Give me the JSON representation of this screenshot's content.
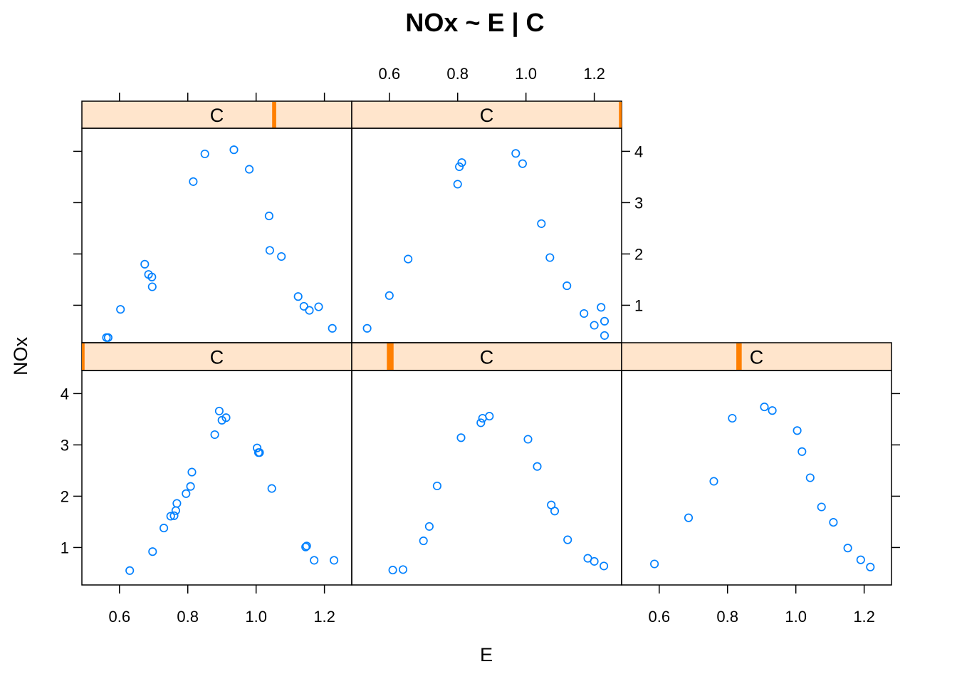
{
  "chart_data": {
    "type": "scatter",
    "title": "NOx ~ E | C",
    "xlabel": "E",
    "ylabel": "NOx",
    "xlim": [
      0.49,
      1.28
    ],
    "ylim": [
      0.27,
      4.45
    ],
    "x_ticks": [
      "0.6",
      "0.8",
      "1.0",
      "1.2"
    ],
    "y_ticks": [
      "1",
      "2",
      "3",
      "4"
    ],
    "colors": {
      "points": "#0080ff",
      "strip_bg": "#ffe5cc",
      "strip_indicator": "#ff7f00",
      "axes": "#000000"
    },
    "panels": [
      {
        "strip_label": "C",
        "row": "bottom",
        "col": 1,
        "strip_indicator": [
          0.0,
          0.01
        ],
        "x": [
          0.63,
          0.697,
          0.73,
          0.75,
          0.76,
          0.765,
          0.768,
          0.795,
          0.808,
          0.812,
          0.879,
          0.892,
          0.9,
          0.912,
          1.003,
          1.007,
          1.01,
          1.046,
          1.145,
          1.148,
          1.17,
          1.228
        ],
        "y": [
          0.55,
          0.92,
          1.38,
          1.61,
          1.62,
          1.72,
          1.86,
          2.05,
          2.19,
          2.47,
          3.2,
          3.66,
          3.48,
          3.53,
          2.94,
          2.85,
          2.85,
          2.15,
          1.01,
          1.03,
          0.75,
          0.75
        ]
      },
      {
        "strip_label": "C",
        "row": "bottom",
        "col": 2,
        "strip_indicator": [
          0.13,
          0.155
        ],
        "x": [
          0.61,
          0.64,
          0.7,
          0.717,
          0.74,
          0.81,
          0.868,
          0.873,
          0.893,
          1.006,
          1.033,
          1.074,
          1.084,
          1.122,
          1.181,
          1.2,
          1.228
        ],
        "y": [
          0.56,
          0.57,
          1.13,
          1.41,
          2.2,
          3.14,
          3.43,
          3.52,
          3.56,
          3.11,
          2.58,
          1.83,
          1.71,
          1.15,
          0.79,
          0.73,
          0.64
        ]
      },
      {
        "strip_label": "C",
        "row": "bottom",
        "col": 3,
        "strip_indicator": [
          0.425,
          0.445
        ],
        "x": [
          0.586,
          0.686,
          0.76,
          0.814,
          0.908,
          0.931,
          1.004,
          1.018,
          1.042,
          1.075,
          1.11,
          1.152,
          1.19,
          1.218
        ],
        "y": [
          0.68,
          1.58,
          2.29,
          3.52,
          3.74,
          3.67,
          3.28,
          2.87,
          2.36,
          1.79,
          1.49,
          0.99,
          0.76,
          0.62
        ]
      },
      {
        "strip_label": "C",
        "row": "top",
        "col": 1,
        "strip_indicator": [
          0.705,
          0.72
        ],
        "x": [
          0.562,
          0.567,
          0.603,
          0.674,
          0.685,
          0.695,
          0.696,
          0.816,
          0.85,
          0.935,
          0.98,
          1.038,
          1.04,
          1.074,
          1.123,
          1.14,
          1.156,
          1.183,
          1.223
        ],
        "y": [
          0.37,
          0.37,
          0.92,
          1.8,
          1.6,
          1.55,
          1.36,
          3.41,
          3.95,
          4.03,
          3.65,
          2.74,
          2.07,
          1.95,
          1.17,
          0.98,
          0.9,
          0.97,
          0.55
        ]
      },
      {
        "strip_label": "C",
        "row": "top",
        "col": 2,
        "strip_indicator": [
          0.99,
          1.0
        ],
        "x": [
          0.535,
          0.6,
          0.655,
          0.8,
          0.805,
          0.812,
          0.97,
          0.99,
          1.045,
          1.07,
          1.12,
          1.17,
          1.2,
          1.22,
          1.23,
          1.23
        ],
        "y": [
          0.55,
          1.19,
          1.9,
          3.36,
          3.7,
          3.78,
          3.96,
          3.76,
          2.59,
          1.93,
          1.38,
          0.84,
          0.61,
          0.96,
          0.69,
          0.41
        ]
      }
    ]
  }
}
